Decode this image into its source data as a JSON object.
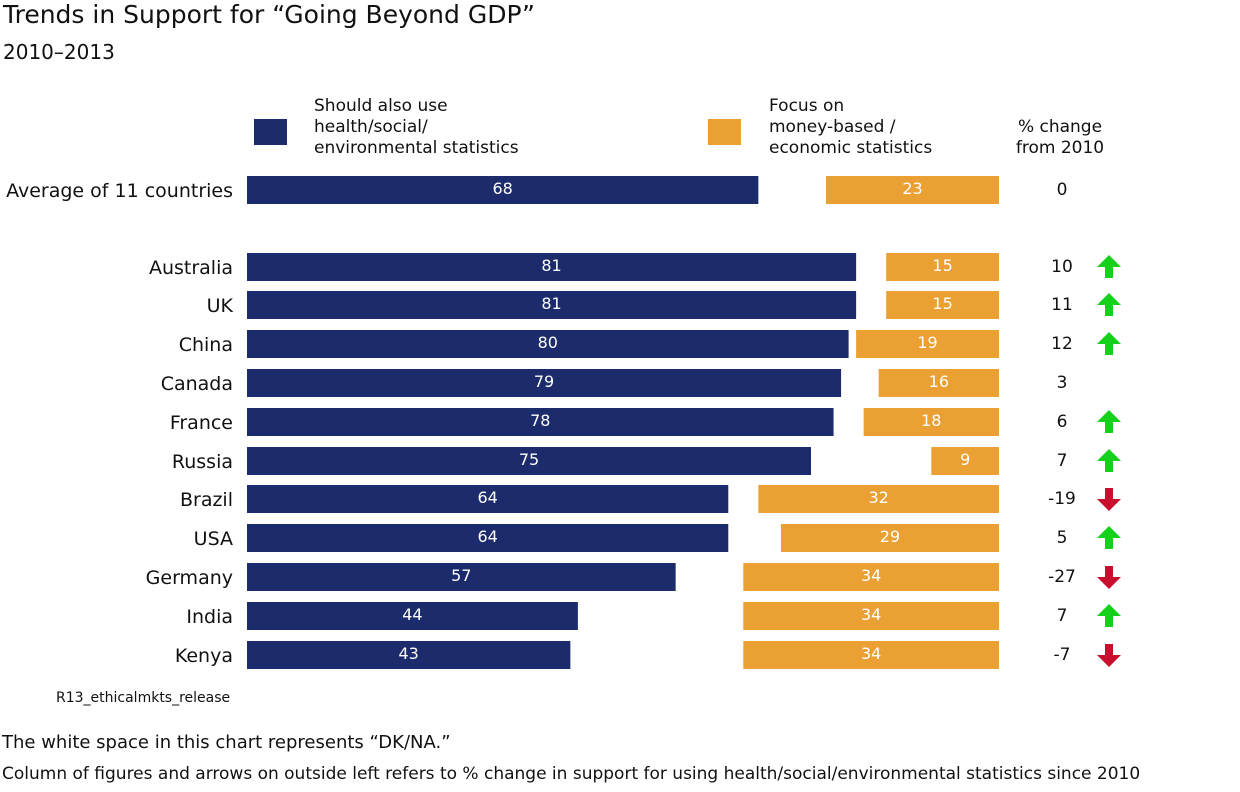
{
  "title": "Trends in Support for “Going Beyond GDP”",
  "subtitle": "2010–2013",
  "legend": {
    "series1": "Should also use\nhealth/social/\nenvironmental statistics",
    "series2": "Focus on\nmoney-based /\neconomic statistics"
  },
  "change_header": "% change\nfrom 2010",
  "colors": {
    "series1": "#1b2b6b",
    "series2": "#eba033",
    "up": "#16d11c",
    "down": "#c8102e"
  },
  "chart_data": {
    "type": "bar",
    "orientation": "horizontal-diverging",
    "xlim": [
      0,
      100
    ],
    "categories": [
      "Average of 11 countries",
      "Australia",
      "UK",
      "China",
      "Canada",
      "France",
      "Russia",
      "Brazil",
      "USA",
      "Germany",
      "India",
      "Kenya"
    ],
    "series": [
      {
        "name": "Should also use health/social/environmental statistics",
        "values": [
          68,
          81,
          81,
          80,
          79,
          78,
          75,
          64,
          64,
          57,
          44,
          43
        ]
      },
      {
        "name": "Focus on money-based / economic statistics",
        "values": [
          23,
          15,
          15,
          19,
          16,
          18,
          9,
          32,
          29,
          34,
          34,
          34
        ]
      }
    ],
    "change_from_2010": [
      0,
      10,
      11,
      12,
      3,
      6,
      7,
      -19,
      5,
      -27,
      7,
      -7
    ],
    "change_arrows": [
      "none",
      "up",
      "up",
      "up",
      "none",
      "up",
      "up",
      "down",
      "up",
      "down",
      "up",
      "down"
    ]
  },
  "source": "R13_ethicalmkts_release",
  "notes": [
    "The white space in this chart represents “DK/NA.”",
    "Column of figures and arrows on outside left refers to % change in support for using health/social/environmental statistics since 2010"
  ]
}
